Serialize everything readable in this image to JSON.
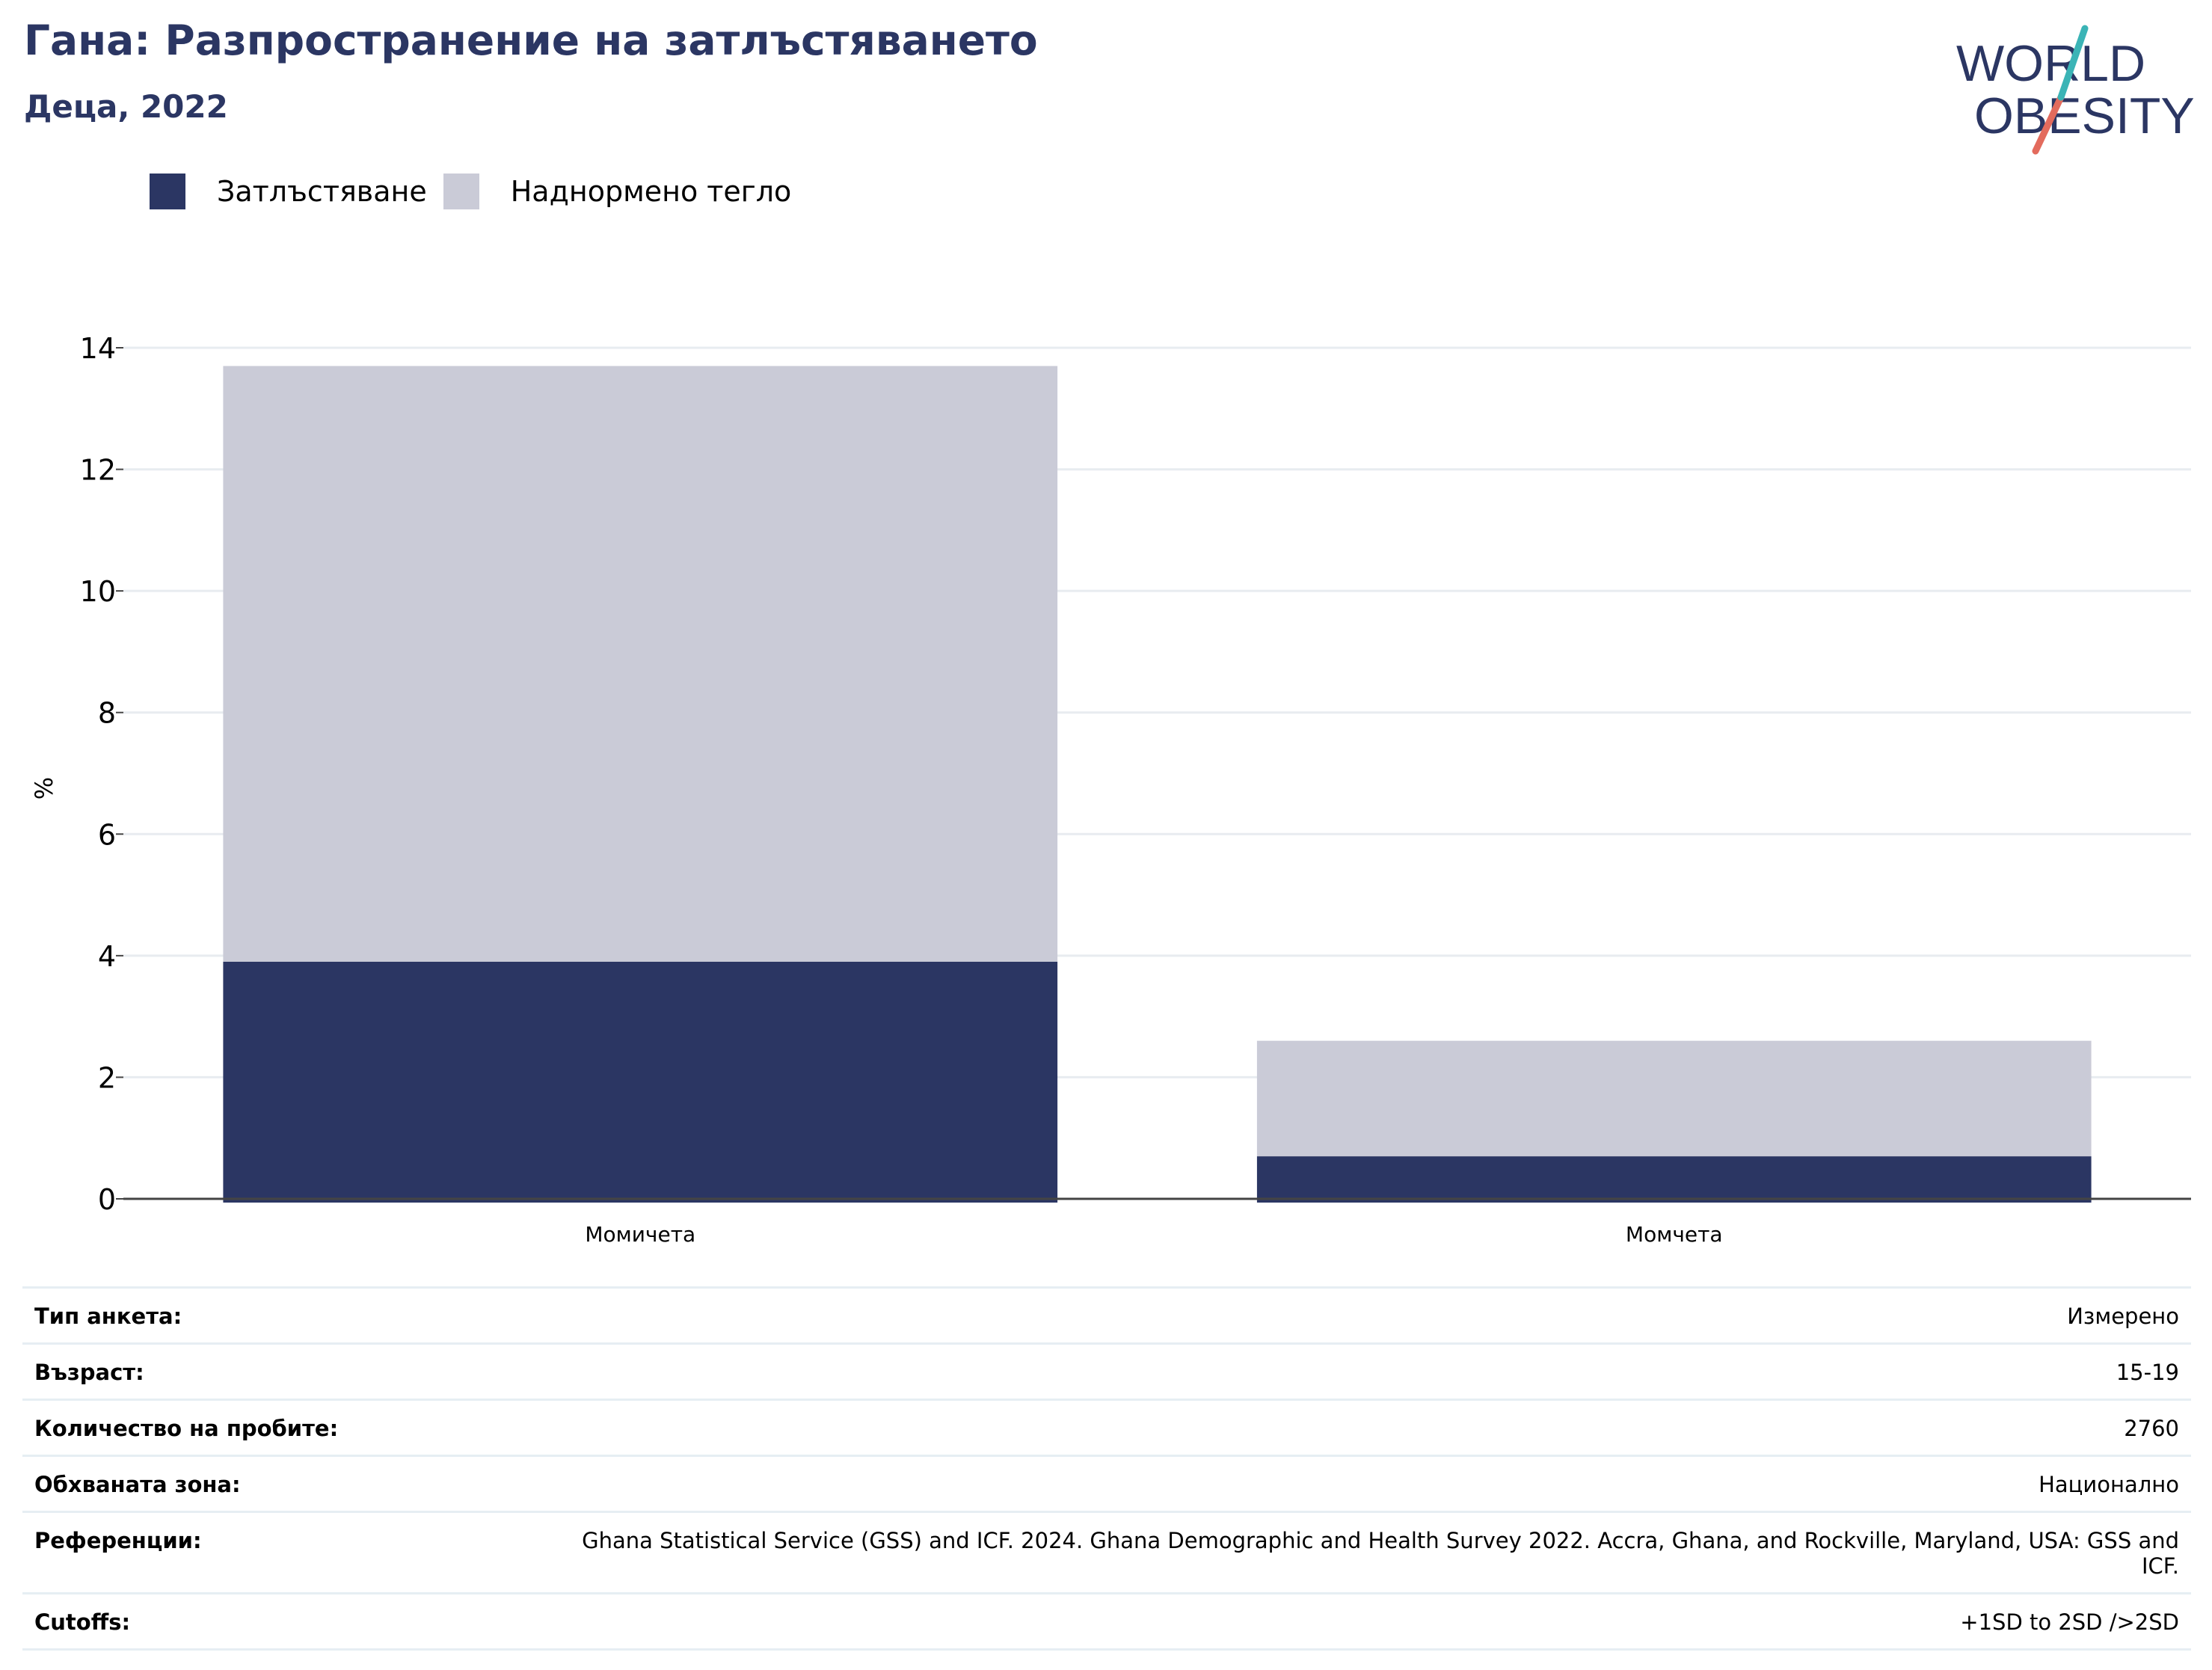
{
  "header": {
    "title": "Гана: Разпространение на затлъстяването",
    "subtitle": "Деца, 2022"
  },
  "logo": {
    "line1": "WORLD",
    "line2": "OBESITY"
  },
  "colors": {
    "obesity": "#2b3663",
    "overweight": "#cacbd7",
    "title": "#2b3663",
    "logo_teal": "#3bb4b6",
    "logo_coral": "#e36b5d"
  },
  "chart_data": {
    "type": "bar",
    "stacked": true,
    "categories": [
      "Момичета",
      "Момчета"
    ],
    "series": [
      {
        "name": "Затлъстяване",
        "values": [
          3.9,
          0.7
        ],
        "color": "#2b3663"
      },
      {
        "name": "Наднормено тегло",
        "values": [
          9.8,
          1.9
        ],
        "color": "#cacbd7"
      }
    ],
    "ylabel": "%",
    "ylim": [
      0,
      14
    ],
    "yticks": [
      0,
      2,
      4,
      6,
      8,
      10,
      12,
      14
    ],
    "grid": true,
    "legend": "top-left"
  },
  "info": [
    {
      "label": "Тип анкета:",
      "value": "Измерено"
    },
    {
      "label": "Възраст:",
      "value": "15-19"
    },
    {
      "label": "Количество на пробите:",
      "value": "2760"
    },
    {
      "label": "Обхваната зона:",
      "value": "Национално"
    },
    {
      "label": "Референции:",
      "value": "Ghana Statistical Service (GSS) and ICF. 2024. Ghana Demographic and Health Survey 2022. Accra, Ghana, and Rockville, Maryland, USA: GSS and ICF."
    },
    {
      "label": "Cutoffs:",
      "value": "+1SD to 2SD />2SD"
    }
  ]
}
